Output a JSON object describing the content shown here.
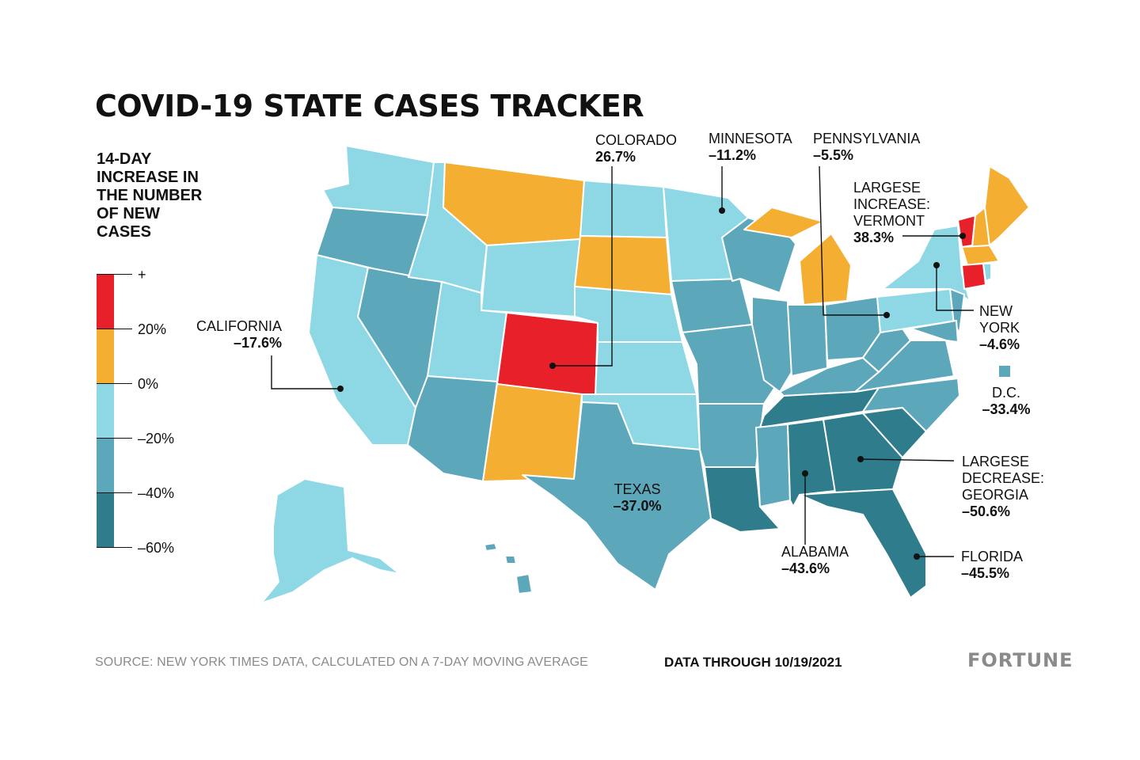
{
  "title": "COVID-19 STATE CASES TRACKER",
  "legend": {
    "title_lines": [
      "14-DAY",
      "INCREASE IN",
      "THE NUMBER",
      "OF NEW",
      "CASES"
    ],
    "ticks": [
      "+",
      "20%",
      "0%",
      "–20%",
      "–40%",
      "–60%"
    ],
    "bins": [
      {
        "range": "above 20%",
        "color": "#e8202a"
      },
      {
        "range": "0% to 20%",
        "color": "#f4ae32"
      },
      {
        "range": "0% to –20%",
        "color": "#8ed8e6"
      },
      {
        "range": "–20% to –40%",
        "color": "#5da7bb"
      },
      {
        "range": "–40% to –60%",
        "color": "#2e7c8c"
      }
    ]
  },
  "callouts": {
    "california": {
      "name": "CALIFORNIA",
      "value": "–17.6%"
    },
    "colorado": {
      "name": "COLORADO",
      "value": "26.7%"
    },
    "minnesota": {
      "name": "MINNESOTA",
      "value": "–11.2%"
    },
    "pennsylvania": {
      "name": "PENNSYLVANIA",
      "value": "–5.5%"
    },
    "vermont": {
      "name_lines": [
        "LARGESE",
        "INCREASE:",
        "VERMONT"
      ],
      "value": "38.3%"
    },
    "new_york": {
      "name_lines": [
        "NEW",
        "YORK"
      ],
      "value": "–4.6%"
    },
    "dc": {
      "name": "D.C.",
      "value": "–33.4%"
    },
    "texas": {
      "name": "TEXAS",
      "value": "–37.0%"
    },
    "georgia": {
      "name_lines": [
        "LARGESE",
        "DECREASE:",
        "GEORGIA"
      ],
      "value": "–50.6%"
    },
    "alabama": {
      "name": "ALABAMA",
      "value": "–43.6%"
    },
    "florida": {
      "name": "FLORIDA",
      "value": "–45.5%"
    }
  },
  "footer": {
    "source": "SOURCE: NEW YORK TIMES DATA, CALCULATED ON A 7-DAY MOVING AVERAGE",
    "date": "DATA THROUGH 10/19/2021",
    "brand": "FORTUNE"
  }
}
